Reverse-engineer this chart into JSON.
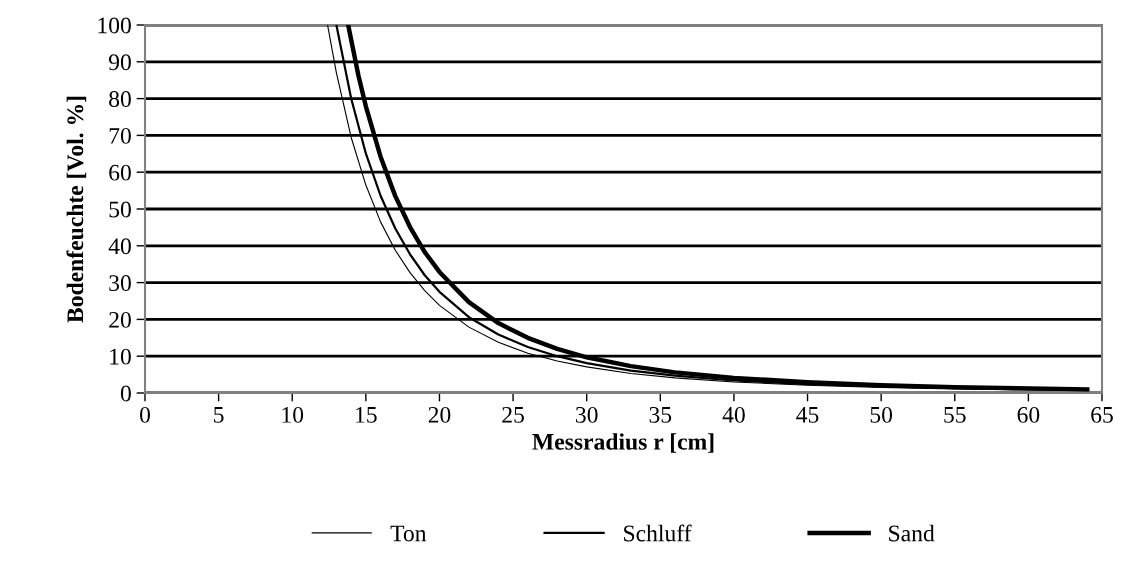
{
  "chart_data": {
    "type": "line",
    "xlabel": "Messradius r [cm]",
    "ylabel": "Bodenfeuchte [Vol. %]",
    "xlim": [
      0,
      65
    ],
    "xticks": [
      0,
      5,
      10,
      15,
      20,
      25,
      30,
      35,
      40,
      45,
      50,
      55,
      60,
      65
    ],
    "ylim": [
      0,
      100
    ],
    "yticks": [
      0,
      10,
      20,
      30,
      40,
      50,
      60,
      70,
      80,
      90,
      100
    ],
    "grid": "y",
    "legend": "bottom",
    "marker": "none",
    "line_style": "solid",
    "series": [
      {
        "name": "Ton",
        "color": "#000000",
        "x": [
          12.4,
          13,
          14,
          15,
          16,
          17,
          18,
          19,
          20,
          22,
          24,
          26,
          28,
          30,
          33,
          36,
          40,
          45,
          50,
          55,
          64
        ],
        "values": [
          100,
          87.0,
          69.5,
          56.5,
          46.5,
          38.8,
          32.7,
          27.8,
          23.8,
          17.9,
          13.8,
          10.8,
          8.7,
          7.1,
          5.3,
          4.1,
          3.0,
          2.1,
          1.5,
          1.1,
          0.7
        ]
      },
      {
        "name": "Schluff",
        "color": "#000000",
        "x": [
          13,
          14,
          15,
          16,
          17,
          18,
          19,
          20,
          22,
          24,
          26,
          28,
          30,
          33,
          36,
          40,
          45,
          50,
          55,
          64
        ],
        "values": [
          100,
          80.1,
          65.1,
          53.6,
          44.7,
          37.7,
          32.0,
          27.5,
          20.6,
          15.9,
          12.5,
          10.0,
          8.1,
          6.1,
          4.7,
          3.4,
          2.4,
          1.8,
          1.3,
          0.8
        ]
      },
      {
        "name": "Sand",
        "color": "#000000",
        "x": [
          13.8,
          14.5,
          15,
          16,
          17,
          18,
          19,
          20,
          22,
          24,
          26,
          28,
          30,
          33,
          36,
          40,
          45,
          50,
          55,
          64
        ],
        "values": [
          100,
          86.2,
          77.9,
          64.2,
          53.5,
          45.1,
          38.3,
          32.9,
          24.7,
          19.0,
          15.0,
          12.0,
          9.7,
          7.3,
          5.6,
          4.1,
          2.9,
          2.1,
          1.6,
          1.0
        ]
      }
    ]
  }
}
